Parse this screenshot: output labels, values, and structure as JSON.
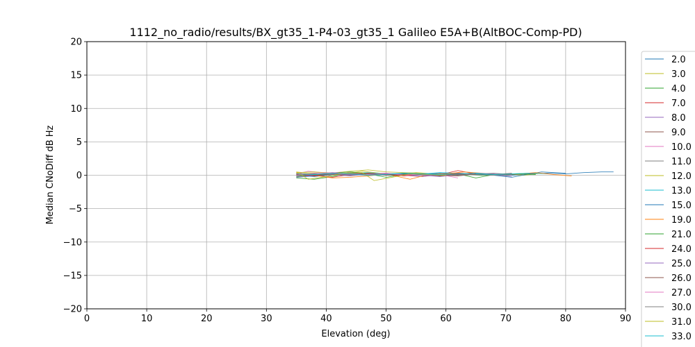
{
  "chart_data": {
    "type": "line",
    "title": "1112_no_radio/results/BX_gt35_1-P4-03_gt35_1 Galileo E5A+B(AltBOC-Comp-PD)",
    "xlabel": "Elevation (deg)",
    "ylabel": "Median CNoDiff dB Hz",
    "xlim": [
      0,
      90
    ],
    "ylim": [
      -20,
      20
    ],
    "xticks": [
      "0",
      "10",
      "20",
      "30",
      "40",
      "50",
      "60",
      "70",
      "80",
      "90"
    ],
    "yticks": [
      "20",
      "15",
      "10",
      "5",
      "0",
      "−5",
      "−10",
      "−15",
      "−20"
    ],
    "grid": true,
    "legend_position": "right, outside plot",
    "series": [
      {
        "name": "2.0",
        "color": "#1f77b4",
        "x": [
          35,
          38,
          41,
          44,
          47,
          50,
          53,
          56,
          59,
          62,
          65,
          68,
          71,
          74,
          77,
          80,
          83,
          86,
          88
        ],
        "y": [
          -0.3,
          -0.1,
          0.2,
          0.3,
          0.1,
          0.2,
          0.0,
          0.1,
          -0.1,
          0.3,
          0.2,
          0.1,
          0.0,
          0.2,
          0.3,
          0.2,
          0.4,
          0.5,
          0.5
        ]
      },
      {
        "name": "3.0",
        "color": "#bcbd22",
        "x": [
          35,
          37,
          40,
          43,
          46,
          49,
          52,
          55,
          58,
          61,
          64,
          67,
          70,
          73,
          76
        ],
        "y": [
          0.5,
          0.3,
          0.4,
          0.2,
          0.6,
          0.3,
          0.1,
          0.4,
          0.2,
          0.0,
          0.3,
          0.1,
          0.2,
          0.0,
          0.3
        ]
      },
      {
        "name": "4.0",
        "color": "#2ca02c",
        "x": [
          35,
          38,
          41,
          44,
          47,
          50,
          53,
          56,
          59,
          62,
          65,
          68,
          71
        ],
        "y": [
          -0.4,
          -0.6,
          -0.2,
          0.4,
          0.2,
          -0.3,
          0.1,
          0.3,
          0.0,
          0.2,
          -0.4,
          0.1,
          0.0
        ]
      },
      {
        "name": "7.0",
        "color": "#d62728",
        "x": [
          35,
          38,
          41,
          44,
          47,
          50,
          53,
          56,
          59,
          62,
          65,
          68
        ],
        "y": [
          0.2,
          0.0,
          -0.3,
          0.1,
          0.3,
          0.2,
          0.0,
          -0.2,
          0.1,
          0.7,
          0.2,
          0.1
        ]
      },
      {
        "name": "8.0",
        "color": "#9467bd",
        "x": [
          35,
          38,
          41,
          44,
          47,
          50,
          53,
          56,
          59,
          62,
          65,
          68,
          71
        ],
        "y": [
          0.0,
          0.2,
          0.1,
          -0.1,
          0.2,
          0.3,
          0.1,
          -0.2,
          0.2,
          0.0,
          0.3,
          0.1,
          -0.2
        ]
      },
      {
        "name": "9.0",
        "color": "#8c564b",
        "x": [
          35,
          38,
          41,
          44,
          47,
          50,
          53,
          56,
          59,
          62,
          65,
          68,
          71
        ],
        "y": [
          0.3,
          0.1,
          0.4,
          0.2,
          0.0,
          0.1,
          0.3,
          0.2,
          0.0,
          -0.1,
          0.2,
          0.1,
          0.3
        ]
      },
      {
        "name": "10.0",
        "color": "#e377c2",
        "x": [
          35,
          37,
          40,
          43,
          46,
          49,
          52,
          55,
          58,
          61
        ],
        "y": [
          0.2,
          0.6,
          0.3,
          0.5,
          0.1,
          0.2,
          0.0,
          0.3,
          -0.1,
          0.2
        ]
      },
      {
        "name": "11.0",
        "color": "#7f7f7f",
        "x": [
          35,
          38,
          41,
          44,
          47,
          50,
          53,
          56,
          59,
          62,
          65,
          68,
          71,
          74
        ],
        "y": [
          -0.1,
          0.1,
          0.0,
          0.3,
          0.2,
          0.1,
          0.0,
          0.2,
          0.1,
          0.0,
          0.2,
          0.3,
          0.1,
          0.2
        ]
      },
      {
        "name": "12.0",
        "color": "#bcbd22",
        "x": [
          35,
          38,
          41,
          44,
          47,
          50,
          53,
          56,
          59,
          62
        ],
        "y": [
          0.4,
          0.5,
          0.3,
          0.6,
          0.8,
          0.5,
          0.4,
          0.3,
          0.2,
          0.1
        ]
      },
      {
        "name": "13.0",
        "color": "#17becf",
        "x": [
          35,
          38,
          41,
          44,
          47,
          50,
          53,
          56,
          59,
          62,
          65,
          68,
          71,
          74,
          77
        ],
        "y": [
          0.1,
          0.2,
          0.0,
          0.3,
          0.4,
          0.2,
          0.3,
          0.2,
          0.4,
          0.3,
          0.2,
          0.1,
          0.2,
          0.3,
          0.2
        ]
      },
      {
        "name": "15.0",
        "color": "#1f77b4",
        "x": [
          35,
          38,
          41,
          44,
          47,
          50,
          53,
          56,
          59,
          62,
          65,
          68,
          71,
          74,
          76,
          80
        ],
        "y": [
          0.0,
          -0.2,
          0.1,
          0.2,
          0.0,
          0.1,
          0.2,
          0.1,
          0.3,
          0.2,
          0.1,
          0.0,
          -0.3,
          0.2,
          0.5,
          0.3
        ]
      },
      {
        "name": "19.0",
        "color": "#ff7f0e",
        "x": [
          35,
          38,
          41,
          44,
          47,
          50,
          54,
          57,
          60,
          63,
          66,
          69,
          72,
          75,
          78,
          81
        ],
        "y": [
          0.3,
          0.0,
          -0.4,
          -0.3,
          -0.1,
          0.2,
          -0.6,
          0.1,
          0.2,
          0.5,
          0.3,
          0.1,
          0.2,
          0.4,
          0.1,
          -0.1
        ]
      },
      {
        "name": "21.0",
        "color": "#2ca02c",
        "x": [
          35,
          38,
          41,
          44,
          48,
          51,
          54,
          57,
          60,
          63,
          66,
          69,
          72,
          75
        ],
        "y": [
          -0.2,
          0.1,
          0.3,
          0.5,
          0.2,
          0.0,
          0.3,
          0.1,
          -0.1,
          0.2,
          0.0,
          0.1,
          0.2,
          0.1
        ]
      },
      {
        "name": "24.0",
        "color": "#d62728",
        "x": [
          35,
          38,
          41,
          44,
          47,
          50,
          53,
          56,
          59,
          62,
          65
        ],
        "y": [
          0.1,
          -0.1,
          0.2,
          0.0,
          0.3,
          0.1,
          -0.1,
          0.2,
          0.0,
          0.3,
          0.1
        ]
      },
      {
        "name": "25.0",
        "color": "#9467bd",
        "x": [
          35,
          38,
          41,
          44,
          47,
          50,
          53,
          56,
          59,
          62,
          65,
          68,
          71
        ],
        "y": [
          -0.3,
          0.0,
          0.2,
          0.1,
          0.0,
          0.2,
          0.1,
          0.0,
          -0.2,
          0.1,
          0.3,
          0.2,
          0.0
        ]
      },
      {
        "name": "26.0",
        "color": "#8c564b",
        "x": [
          35,
          38,
          41,
          44,
          47,
          50,
          53,
          56,
          59,
          62,
          65
        ],
        "y": [
          0.2,
          0.0,
          0.1,
          0.3,
          0.2,
          0.0,
          0.1,
          0.2,
          -0.1,
          0.1,
          0.2
        ]
      },
      {
        "name": "27.0",
        "color": "#e377c2",
        "x": [
          35,
          38,
          41,
          44,
          47,
          50,
          53,
          56,
          59,
          62
        ],
        "y": [
          0.0,
          0.3,
          0.4,
          0.2,
          0.1,
          0.3,
          0.0,
          0.2,
          0.1,
          -0.4
        ]
      },
      {
        "name": "30.0",
        "color": "#7f7f7f",
        "x": [
          35,
          38,
          41,
          44,
          47,
          50,
          53,
          56,
          59,
          62,
          65,
          68,
          71
        ],
        "y": [
          -0.1,
          0.2,
          0.1,
          0.0,
          0.2,
          0.1,
          0.3,
          0.1,
          0.0,
          0.2,
          0.1,
          0.0,
          0.1
        ]
      },
      {
        "name": "31.0",
        "color": "#bcbd22",
        "x": [
          35,
          37,
          40,
          43,
          46,
          48,
          51,
          54,
          57,
          60
        ],
        "y": [
          0.5,
          -0.6,
          -0.2,
          0.3,
          0.4,
          -0.8,
          -0.3,
          0.2,
          0.1,
          0.0
        ]
      },
      {
        "name": "33.0",
        "color": "#17becf",
        "x": [
          35,
          38,
          41,
          44,
          47,
          50,
          53,
          56,
          59,
          62,
          65,
          68,
          71,
          74
        ],
        "y": [
          0.2,
          0.1,
          0.3,
          0.2,
          0.0,
          0.1,
          0.3,
          0.2,
          0.1,
          0.2,
          0.3,
          0.1,
          0.2,
          0.3
        ]
      }
    ]
  }
}
